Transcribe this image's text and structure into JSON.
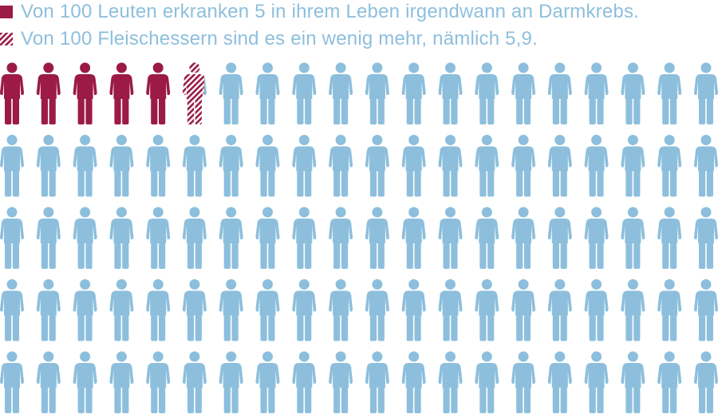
{
  "legend": [
    {
      "label": "Von 100 Leuten erkranken 5 in ihrem Leben irgendwann an Darmkrebs.",
      "style": "solid"
    },
    {
      "label": "Von 100 Fleischessern sind es ein wenig mehr, nämlich 5,9.",
      "style": "hatched"
    }
  ],
  "colors": {
    "highlight": "#9b1b46",
    "base": "#8dbfdd",
    "text": "#8dbfdd"
  },
  "chart_data": {
    "type": "pictogram",
    "icon": "person-icon",
    "total": 100,
    "columns": 20,
    "rows": 5,
    "series": [
      {
        "name": "Von 100 Leuten erkranken 5 in ihrem Leben irgendwann an Darmkrebs.",
        "value": 5,
        "fill": "solid"
      },
      {
        "name": "Von 100 Fleischessern sind es ein wenig mehr, nämlich 5,9.",
        "value": 5.9,
        "fill": "hatched"
      }
    ]
  }
}
